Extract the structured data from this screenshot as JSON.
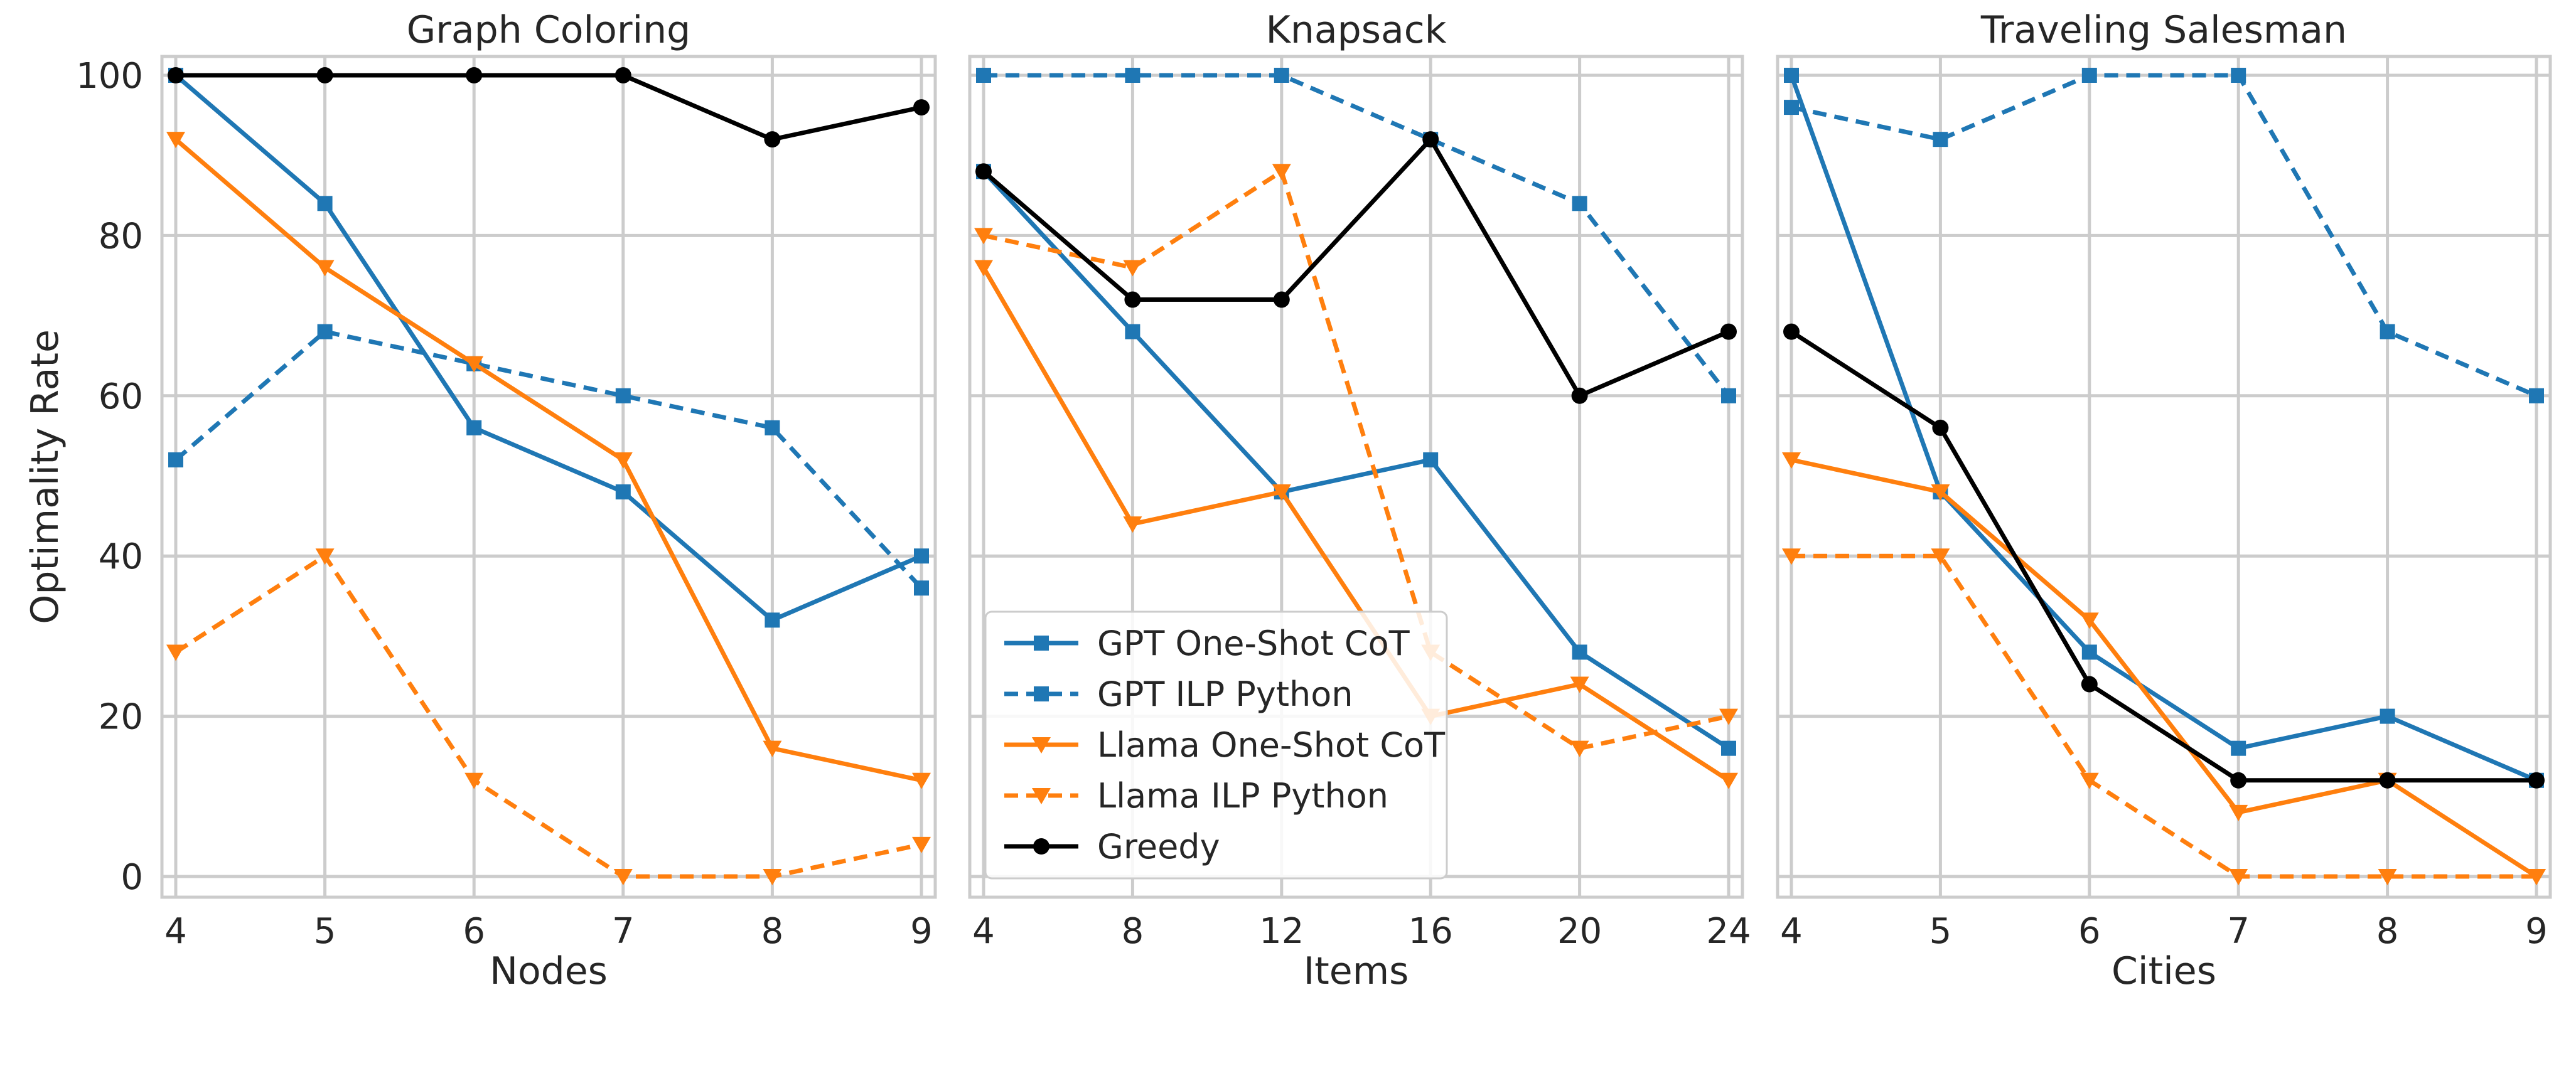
{
  "figure": {
    "ylabel": "Optimality Rate",
    "yticks": [
      0,
      20,
      40,
      60,
      80,
      100
    ],
    "legend_position": "lower-left of middle panel"
  },
  "series_styles": [
    {
      "name": "GPT One-Shot CoT",
      "color": "#1f77b4",
      "dash": "solid",
      "marker": "square"
    },
    {
      "name": "GPT ILP Python",
      "color": "#1f77b4",
      "dash": "dashed",
      "marker": "square"
    },
    {
      "name": "Llama One-Shot CoT",
      "color": "#ff7f0e",
      "dash": "solid",
      "marker": "triangle-down"
    },
    {
      "name": "Llama ILP Python",
      "color": "#ff7f0e",
      "dash": "dashed",
      "marker": "triangle-down"
    },
    {
      "name": "Greedy",
      "color": "#000000",
      "dash": "solid",
      "marker": "circle"
    }
  ],
  "chart_data": [
    {
      "type": "line",
      "title": "Graph Coloring",
      "xlabel": "Nodes",
      "ylabel": "Optimality Rate",
      "x": [
        4,
        5,
        6,
        7,
        8,
        9
      ],
      "xlim": [
        4,
        9
      ],
      "ylim": [
        0,
        100
      ],
      "series": [
        {
          "name": "GPT One-Shot CoT",
          "values": [
            100,
            84,
            56,
            48,
            32,
            40
          ]
        },
        {
          "name": "GPT ILP Python",
          "values": [
            52,
            68,
            64,
            60,
            56,
            36
          ]
        },
        {
          "name": "Llama One-Shot CoT",
          "values": [
            92,
            76,
            64,
            52,
            16,
            12
          ]
        },
        {
          "name": "Llama ILP Python",
          "values": [
            28,
            40,
            12,
            0,
            0,
            4
          ]
        },
        {
          "name": "Greedy",
          "values": [
            100,
            100,
            100,
            100,
            92,
            96
          ]
        }
      ]
    },
    {
      "type": "line",
      "title": "Knapsack",
      "xlabel": "Items",
      "ylabel": "",
      "x": [
        4,
        8,
        12,
        16,
        20,
        24
      ],
      "xlim": [
        4,
        24
      ],
      "ylim": [
        0,
        100
      ],
      "series": [
        {
          "name": "GPT One-Shot CoT",
          "values": [
            88,
            68,
            48,
            52,
            28,
            16
          ]
        },
        {
          "name": "GPT ILP Python",
          "values": [
            100,
            100,
            100,
            92,
            84,
            60
          ]
        },
        {
          "name": "Llama One-Shot CoT",
          "values": [
            76,
            44,
            48,
            20,
            24,
            12
          ]
        },
        {
          "name": "Llama ILP Python",
          "values": [
            80,
            76,
            88,
            28,
            16,
            20
          ]
        },
        {
          "name": "Greedy",
          "values": [
            88,
            72,
            72,
            92,
            60,
            68
          ]
        }
      ]
    },
    {
      "type": "line",
      "title": "Traveling Salesman",
      "xlabel": "Cities",
      "ylabel": "",
      "x": [
        4,
        5,
        6,
        7,
        8,
        9
      ],
      "xlim": [
        4,
        9
      ],
      "ylim": [
        0,
        100
      ],
      "series": [
        {
          "name": "GPT One-Shot CoT",
          "values": [
            100,
            48,
            28,
            16,
            20,
            12
          ]
        },
        {
          "name": "GPT ILP Python",
          "values": [
            96,
            92,
            100,
            100,
            68,
            60
          ]
        },
        {
          "name": "Llama One-Shot CoT",
          "values": [
            52,
            48,
            32,
            8,
            12,
            0
          ]
        },
        {
          "name": "Llama ILP Python",
          "values": [
            40,
            40,
            12,
            0,
            0,
            0
          ]
        },
        {
          "name": "Greedy",
          "values": [
            68,
            56,
            24,
            12,
            12,
            12
          ]
        }
      ]
    }
  ]
}
